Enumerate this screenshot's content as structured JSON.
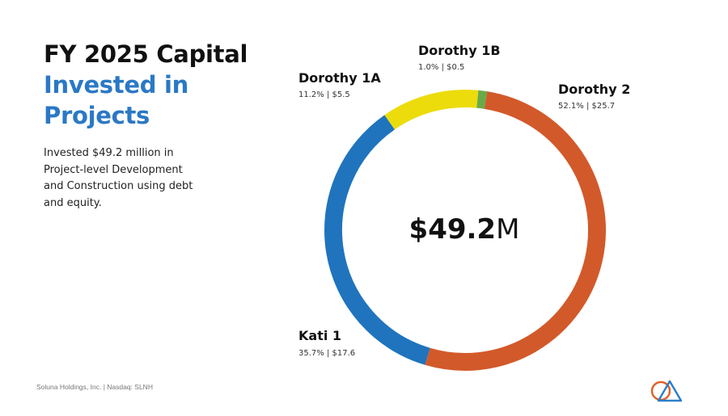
{
  "header": {
    "title_line1": "FY 2025 Capital",
    "title_line2": "Invested in",
    "title_line3": "Projects"
  },
  "description": "Invested $49.2 million in Project-level Development and Construction using debt and equity.",
  "footer": {
    "text": "Soluna Holdings, Inc. | Nasdaq: SLNH"
  },
  "colors": {
    "title_accent": "#2b78c5"
  },
  "chart_data": {
    "type": "pie",
    "style": "donut",
    "title": "FY 2025 Capital Invested in Projects",
    "center_value": "$49.2",
    "center_unit": "M",
    "total": 49.2,
    "unit": "$M",
    "slices": [
      {
        "name": "Dorothy 2",
        "percent": 52.1,
        "value": 25.7,
        "stat": "52.1% | $25.7",
        "color": "#d2592a"
      },
      {
        "name": "Kati 1",
        "percent": 35.7,
        "value": 17.6,
        "stat": "35.7% | $17.6",
        "color": "#1f74bd"
      },
      {
        "name": "Dorothy 1A",
        "percent": 11.2,
        "value": 5.5,
        "stat": "11.2% | $5.5",
        "color": "#ecdc0c"
      },
      {
        "name": "Dorothy 1B",
        "percent": 1.0,
        "value": 0.5,
        "stat": "1.0% | $0.5",
        "color": "#6aaa48"
      }
    ]
  }
}
